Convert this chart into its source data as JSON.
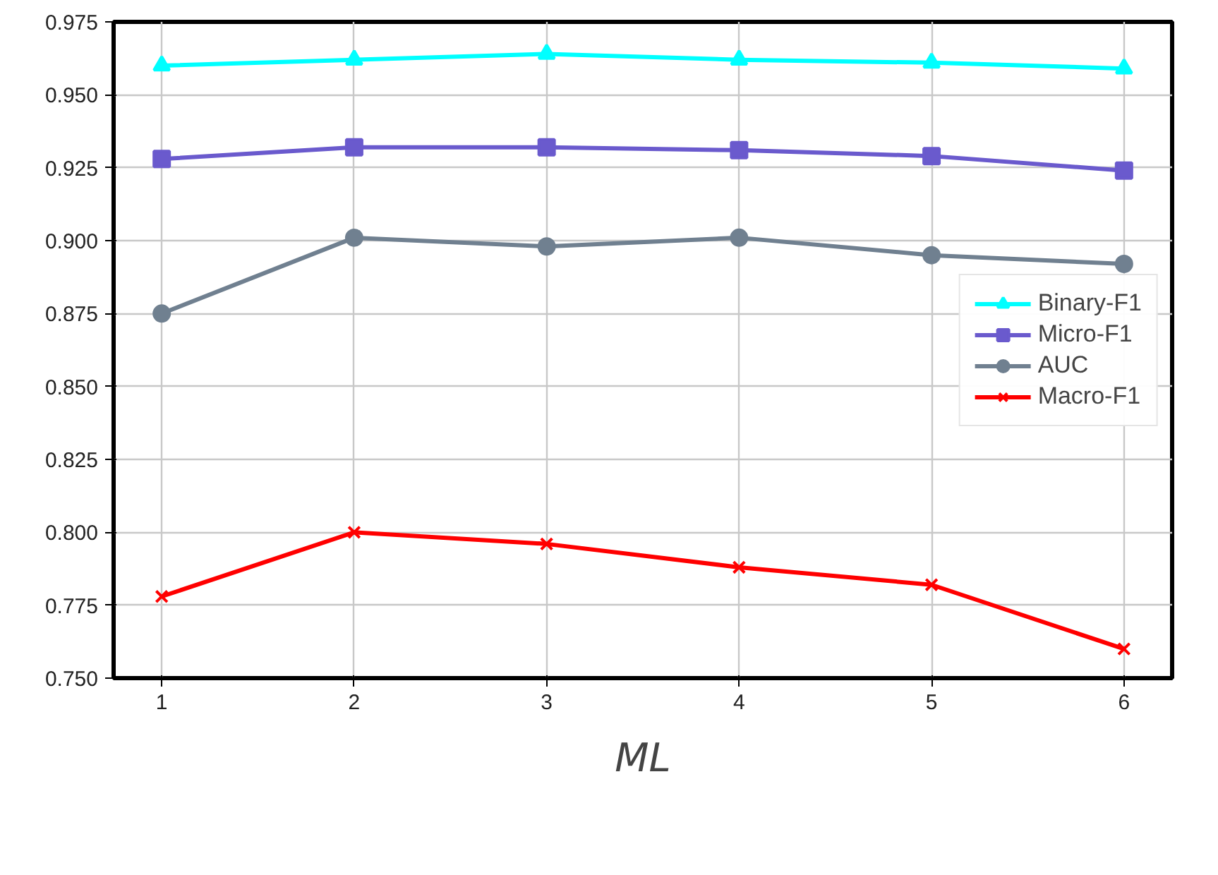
{
  "chart_data": {
    "type": "line",
    "xlabel": "ML",
    "x": [
      1,
      2,
      3,
      4,
      5,
      6
    ],
    "series": [
      {
        "name": "Binary-F1",
        "color": "#00ffff",
        "marker": "triangle",
        "values": [
          0.96,
          0.962,
          0.964,
          0.962,
          0.961,
          0.959
        ]
      },
      {
        "name": "Micro-F1",
        "color": "#6a5acd",
        "marker": "square",
        "values": [
          0.928,
          0.932,
          0.932,
          0.931,
          0.929,
          0.924
        ]
      },
      {
        "name": "AUC",
        "color": "#708090",
        "marker": "circle",
        "values": [
          0.875,
          0.901,
          0.898,
          0.901,
          0.895,
          0.892
        ]
      },
      {
        "name": "Macro-F1",
        "color": "#ff0000",
        "marker": "cross",
        "values": [
          0.778,
          0.8,
          0.796,
          0.788,
          0.782,
          0.76
        ]
      }
    ],
    "xlim": [
      0.75,
      6.25
    ],
    "xticks": [
      1,
      2,
      3,
      4,
      5,
      6
    ],
    "ylim": [
      0.75,
      0.975
    ],
    "yticks": [
      {
        "value": 0.75,
        "label": "0.750"
      },
      {
        "value": 0.775,
        "label": "0.775"
      },
      {
        "value": 0.8,
        "label": "0.800"
      },
      {
        "value": 0.825,
        "label": "0.825"
      },
      {
        "value": 0.85,
        "label": "0.850"
      },
      {
        "value": 0.875,
        "label": "0.875"
      },
      {
        "value": 0.9,
        "label": "0.900"
      },
      {
        "value": 0.925,
        "label": "0.925"
      },
      {
        "value": 0.95,
        "label": "0.950"
      },
      {
        "value": 0.975,
        "label": "0.975"
      }
    ],
    "grid": true,
    "legend": "right",
    "line_style": "solid"
  }
}
